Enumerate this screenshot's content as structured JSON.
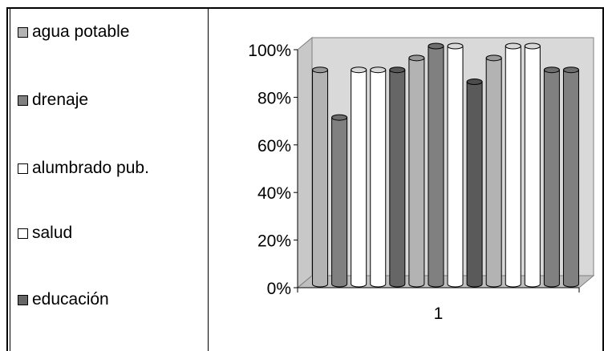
{
  "chart_data": {
    "type": "bar",
    "categories": [
      "1"
    ],
    "series": [
      {
        "name": "",
        "color": "#b3b3b3",
        "values": [
          0.9
        ]
      },
      {
        "name": "",
        "color": "#808080",
        "values": [
          0.7
        ]
      },
      {
        "name": "",
        "color": "#ffffff",
        "values": [
          0.9
        ]
      },
      {
        "name": "",
        "color": "#ffffff",
        "values": [
          0.9
        ]
      },
      {
        "name": "",
        "color": "#666666",
        "values": [
          0.9
        ]
      },
      {
        "name": "",
        "color": "#b3b3b3",
        "values": [
          0.95
        ]
      },
      {
        "name": "",
        "color": "#808080",
        "values": [
          1.0
        ]
      },
      {
        "name": "",
        "color": "#ffffff",
        "values": [
          1.0
        ]
      },
      {
        "name": "",
        "color": "#5a5a5a",
        "values": [
          0.85
        ]
      },
      {
        "name": "",
        "color": "#b3b3b3",
        "values": [
          0.95
        ]
      },
      {
        "name": "",
        "color": "#ffffff",
        "values": [
          1.0
        ]
      },
      {
        "name": "",
        "color": "#ffffff",
        "values": [
          1.0
        ]
      },
      {
        "name": "",
        "color": "#808080",
        "values": [
          0.9
        ]
      },
      {
        "name": "",
        "color": "#808080",
        "values": [
          0.9
        ]
      }
    ],
    "ylim": [
      0,
      1
    ],
    "yticks": [
      "0%",
      "20%",
      "40%",
      "60%",
      "80%",
      "100%"
    ],
    "grid": false,
    "three_d": true,
    "legend": {
      "placement": "left",
      "entries": [
        {
          "label": "agua potable",
          "color": "#b3b3b3"
        },
        {
          "label": "drenaje",
          "color": "#808080"
        },
        {
          "label": "alumbrado pub.",
          "color": "#ffffff"
        },
        {
          "label": "salud",
          "color": "#ffffff"
        },
        {
          "label": "educación",
          "color": "#666666"
        }
      ]
    },
    "title": "",
    "xlabel": "",
    "ylabel": ""
  }
}
